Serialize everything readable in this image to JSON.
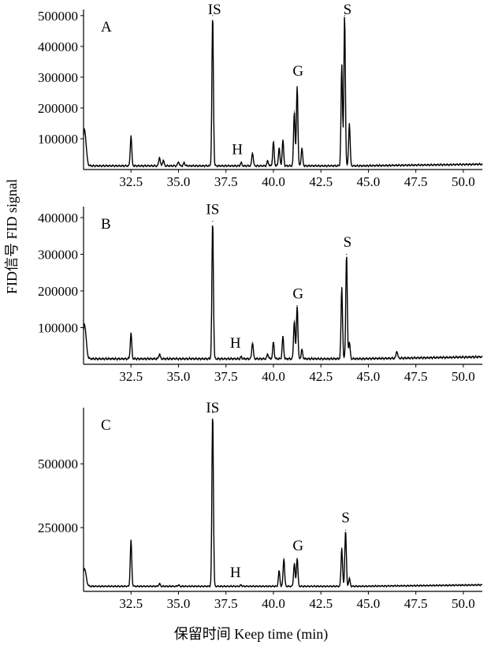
{
  "xlabel": "保留时间 Keep time (min)",
  "ylabel": "FID信号 FID signal",
  "chart_data": [
    {
      "type": "line",
      "panel_label": "A",
      "x_ticks": [
        "32.5",
        "35.0",
        "37.5",
        "40.0",
        "42.5",
        "45.0",
        "47.5",
        "50.0"
      ],
      "y_ticks": [
        "100000",
        "200000",
        "300000",
        "400000",
        "500000"
      ],
      "xlim": [
        30.0,
        51.0
      ],
      "ylim": [
        0,
        520000
      ],
      "baseline": 12000,
      "peaks": [
        {
          "x": 30.05,
          "y": 130000
        },
        {
          "x": 32.5,
          "y": 110000
        },
        {
          "x": 34.0,
          "y": 40000
        },
        {
          "x": 34.2,
          "y": 30000
        },
        {
          "x": 35.0,
          "y": 25000
        },
        {
          "x": 35.3,
          "y": 22000
        },
        {
          "x": 36.8,
          "y": 500000
        },
        {
          "x": 38.3,
          "y": 22000
        },
        {
          "x": 38.9,
          "y": 55000
        },
        {
          "x": 39.7,
          "y": 28000
        },
        {
          "x": 40.0,
          "y": 90000
        },
        {
          "x": 40.3,
          "y": 70000
        },
        {
          "x": 40.5,
          "y": 95000
        },
        {
          "x": 41.1,
          "y": 190000
        },
        {
          "x": 41.25,
          "y": 270000
        },
        {
          "x": 41.5,
          "y": 70000
        },
        {
          "x": 43.6,
          "y": 340000
        },
        {
          "x": 43.75,
          "y": 500000
        },
        {
          "x": 44.0,
          "y": 150000
        }
      ],
      "annotations": [
        {
          "text": "IS",
          "x": 36.9,
          "y": 520000
        },
        {
          "text": "H",
          "x": 38.1,
          "y": 50000
        },
        {
          "text": "G",
          "x": 41.3,
          "y": 305000
        },
        {
          "text": "S",
          "x": 43.9,
          "y": 520000
        }
      ]
    },
    {
      "type": "line",
      "panel_label": "B",
      "x_ticks": [
        "32.5",
        "35.0",
        "37.5",
        "40.0",
        "42.5",
        "45.0",
        "47.5",
        "50.0"
      ],
      "y_ticks": [
        "100000",
        "200000",
        "300000",
        "400000"
      ],
      "xlim": [
        30.0,
        51.0
      ],
      "ylim": [
        0,
        430000
      ],
      "baseline": 15000,
      "peaks": [
        {
          "x": 30.05,
          "y": 110000
        },
        {
          "x": 32.5,
          "y": 85000
        },
        {
          "x": 34.0,
          "y": 28000
        },
        {
          "x": 36.8,
          "y": 390000
        },
        {
          "x": 38.3,
          "y": 20000
        },
        {
          "x": 38.9,
          "y": 60000
        },
        {
          "x": 39.7,
          "y": 28000
        },
        {
          "x": 40.0,
          "y": 60000
        },
        {
          "x": 40.5,
          "y": 75000
        },
        {
          "x": 41.1,
          "y": 120000
        },
        {
          "x": 41.25,
          "y": 160000
        },
        {
          "x": 41.5,
          "y": 40000
        },
        {
          "x": 43.6,
          "y": 210000
        },
        {
          "x": 43.85,
          "y": 300000
        },
        {
          "x": 44.0,
          "y": 60000
        },
        {
          "x": 46.5,
          "y": 35000
        }
      ],
      "annotations": [
        {
          "text": "IS",
          "x": 36.8,
          "y": 410000
        },
        {
          "text": "H",
          "x": 38.0,
          "y": 45000
        },
        {
          "text": "G",
          "x": 41.3,
          "y": 180000
        },
        {
          "text": "S",
          "x": 43.9,
          "y": 320000
        }
      ]
    },
    {
      "type": "line",
      "panel_label": "C",
      "x_ticks": [
        "32.5",
        "35.0",
        "37.5",
        "40.0",
        "42.5",
        "45.0",
        "47.5",
        "50.0"
      ],
      "y_ticks": [
        "250000",
        "500000"
      ],
      "xlim": [
        30.0,
        51.0
      ],
      "ylim": [
        0,
        720000
      ],
      "baseline": 20000,
      "peaks": [
        {
          "x": 30.05,
          "y": 90000
        },
        {
          "x": 32.5,
          "y": 200000
        },
        {
          "x": 34.0,
          "y": 30000
        },
        {
          "x": 35.0,
          "y": 25000
        },
        {
          "x": 36.8,
          "y": 700000
        },
        {
          "x": 38.3,
          "y": 25000
        },
        {
          "x": 40.3,
          "y": 80000
        },
        {
          "x": 40.55,
          "y": 130000
        },
        {
          "x": 41.1,
          "y": 110000
        },
        {
          "x": 41.25,
          "y": 130000
        },
        {
          "x": 43.6,
          "y": 170000
        },
        {
          "x": 43.8,
          "y": 240000
        },
        {
          "x": 44.0,
          "y": 50000
        }
      ],
      "annotations": [
        {
          "text": "IS",
          "x": 36.8,
          "y": 715000
        },
        {
          "text": "H",
          "x": 38.0,
          "y": 55000
        },
        {
          "text": "G",
          "x": 41.3,
          "y": 160000
        },
        {
          "text": "S",
          "x": 43.8,
          "y": 270000
        }
      ]
    }
  ]
}
